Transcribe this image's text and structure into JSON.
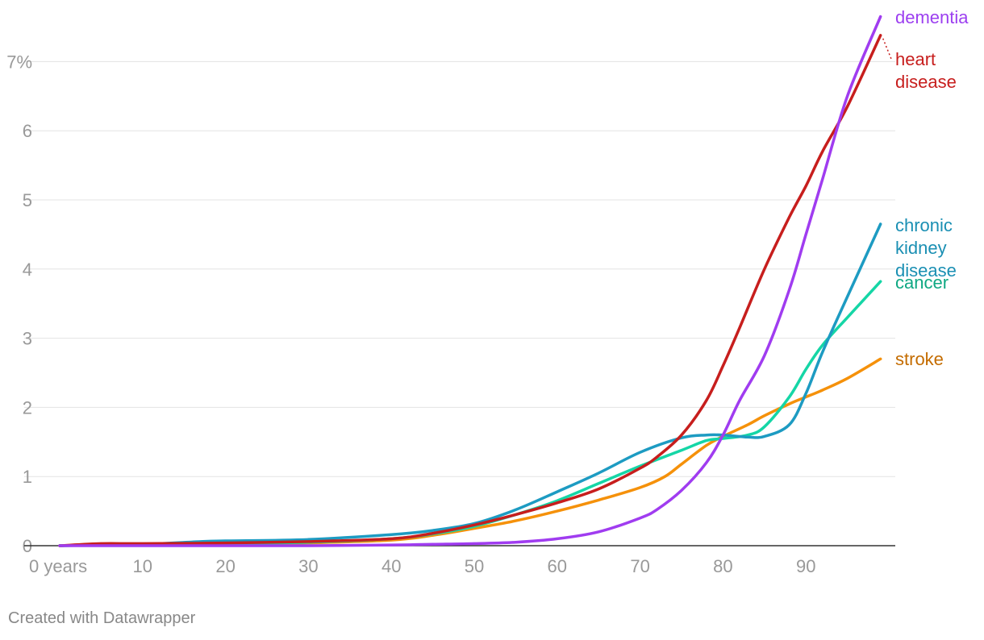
{
  "credit": "Created with Datawrapper",
  "chart_data": {
    "type": "line",
    "title": "",
    "xlabel": "",
    "ylabel": "",
    "x_ticks": [
      {
        "value": 0,
        "label": "0 years"
      },
      {
        "value": 10,
        "label": "10"
      },
      {
        "value": 20,
        "label": "20"
      },
      {
        "value": 30,
        "label": "30"
      },
      {
        "value": 40,
        "label": "40"
      },
      {
        "value": 50,
        "label": "50"
      },
      {
        "value": 60,
        "label": "60"
      },
      {
        "value": 70,
        "label": "70"
      },
      {
        "value": 80,
        "label": "80"
      },
      {
        "value": 90,
        "label": "90"
      }
    ],
    "y_ticks": [
      {
        "value": 0,
        "label": "0"
      },
      {
        "value": 1,
        "label": "1"
      },
      {
        "value": 2,
        "label": "2"
      },
      {
        "value": 3,
        "label": "3"
      },
      {
        "value": 4,
        "label": "4"
      },
      {
        "value": 5,
        "label": "5"
      },
      {
        "value": 6,
        "label": "6"
      },
      {
        "value": 7,
        "label": "7%"
      }
    ],
    "xlim": [
      0,
      100
    ],
    "ylim": [
      0,
      7.6
    ],
    "grid": "horizontal",
    "legend": "direct labels at line ends",
    "series": [
      {
        "label": "dementia",
        "color": "#a03cf0",
        "x": [
          0,
          10,
          20,
          30,
          40,
          45,
          50,
          55,
          60,
          65,
          70,
          72,
          75,
          78,
          80,
          82,
          85,
          88,
          90,
          92,
          95,
          99
        ],
        "y": [
          0,
          0,
          0,
          0,
          0.01,
          0.02,
          0.03,
          0.05,
          0.1,
          0.2,
          0.4,
          0.52,
          0.8,
          1.2,
          1.6,
          2.1,
          2.75,
          3.7,
          4.5,
          5.3,
          6.5,
          7.65
        ]
      },
      {
        "label": "heart disease",
        "color": "#c71e1d",
        "x": [
          0,
          5,
          10,
          20,
          30,
          40,
          45,
          50,
          55,
          60,
          65,
          70,
          72,
          75,
          78,
          80,
          82,
          85,
          88,
          90,
          92,
          95,
          99
        ],
        "y": [
          0,
          0.03,
          0.03,
          0.04,
          0.06,
          0.1,
          0.18,
          0.3,
          0.45,
          0.62,
          0.82,
          1.12,
          1.28,
          1.6,
          2.1,
          2.6,
          3.15,
          4.0,
          4.75,
          5.2,
          5.7,
          6.35,
          7.38
        ]
      },
      {
        "label": "chronic kidney disease",
        "color": "#1d9bc2",
        "x": [
          0,
          10,
          17,
          20,
          30,
          40,
          45,
          50,
          55,
          60,
          65,
          70,
          75,
          78,
          80,
          83,
          85,
          88,
          90,
          92,
          95,
          99
        ],
        "y": [
          0,
          0.02,
          0.06,
          0.07,
          0.09,
          0.16,
          0.22,
          0.32,
          0.52,
          0.78,
          1.05,
          1.35,
          1.56,
          1.6,
          1.6,
          1.57,
          1.58,
          1.75,
          2.2,
          2.8,
          3.6,
          4.65
        ]
      },
      {
        "label": "cancer",
        "color": "#15d6a6",
        "x": [
          0,
          10,
          20,
          30,
          40,
          45,
          50,
          55,
          60,
          65,
          70,
          75,
          78,
          80,
          83,
          85,
          88,
          90,
          92,
          95,
          99
        ],
        "y": [
          0,
          0.02,
          0.03,
          0.05,
          0.1,
          0.17,
          0.28,
          0.45,
          0.65,
          0.9,
          1.15,
          1.38,
          1.52,
          1.55,
          1.6,
          1.72,
          2.15,
          2.55,
          2.9,
          3.3,
          3.82
        ]
      },
      {
        "label": "stroke",
        "color": "#f5910a",
        "x": [
          0,
          10,
          20,
          30,
          40,
          45,
          50,
          55,
          60,
          65,
          70,
          73,
          75,
          78,
          80,
          83,
          85,
          88,
          90,
          92,
          95,
          99
        ],
        "y": [
          0,
          0.02,
          0.02,
          0.04,
          0.08,
          0.15,
          0.25,
          0.36,
          0.5,
          0.66,
          0.84,
          1.0,
          1.18,
          1.45,
          1.58,
          1.75,
          1.88,
          2.05,
          2.15,
          2.25,
          2.42,
          2.7
        ]
      }
    ],
    "label_colors": {
      "dementia": "#9c3ff0",
      "heart disease": "#c71e1d",
      "chronic kidney disease": "#1a8fb3",
      "cancer": "#0fa883",
      "stroke": "#c46c00"
    }
  }
}
